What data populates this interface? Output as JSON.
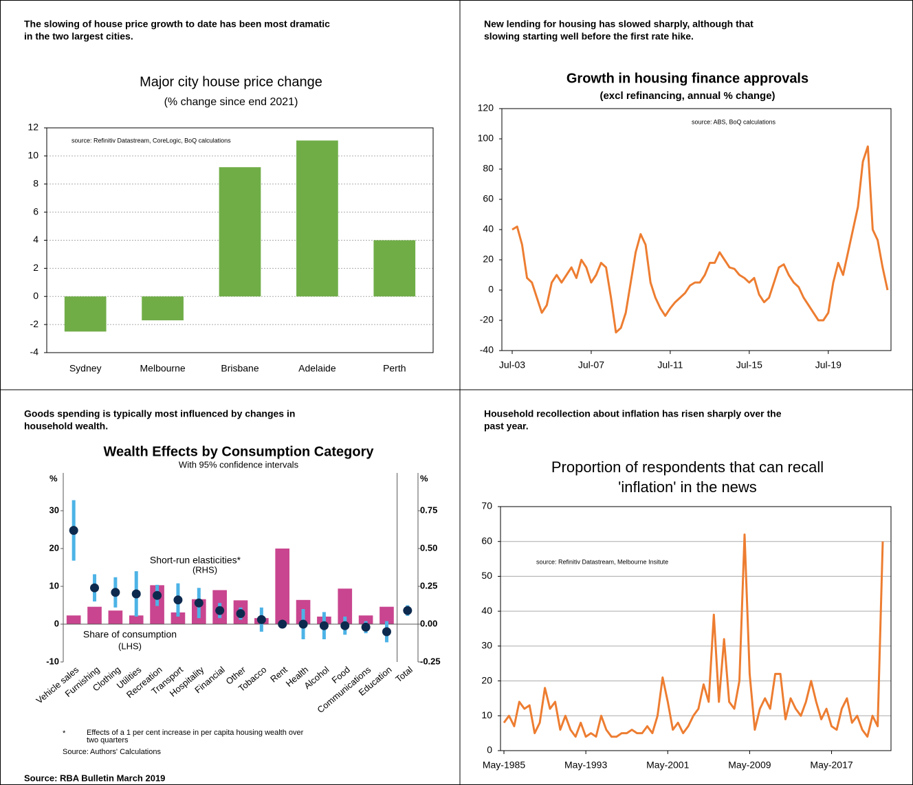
{
  "chart_data": [
    {
      "type": "bar",
      "caption": [
        "The slowing of house price growth to date has been most dramatic",
        "in the two largest cities."
      ],
      "title": "Major city house price change",
      "subtitle": "(% change since end 2021)",
      "source": "source:  Refinitiv Datastream, CoreLogic, BoQ calculations",
      "categories": [
        "Sydney",
        "Melbourne",
        "Brisbane",
        "Adelaide",
        "Perth"
      ],
      "values": [
        -2.5,
        -1.7,
        9.2,
        11.1,
        4.0
      ],
      "color": "#70ad47",
      "ylim": [
        -4,
        12
      ],
      "yticks": [
        -4,
        -2,
        0,
        2,
        4,
        6,
        8,
        10,
        12
      ],
      "grid": true
    },
    {
      "type": "line",
      "caption": [
        "New lending for housing has slowed sharply, although that",
        "slowing starting well before the first rate hike."
      ],
      "title": "Growth in housing finance approvals",
      "subtitle": "(excl refinancing, annual % change)",
      "source": "source:  ABS, BoQ calculations",
      "x": [
        "Jul-03",
        "Oct-03",
        "Jan-04",
        "Apr-04",
        "Jul-04",
        "Oct-04",
        "Jan-05",
        "Apr-05",
        "Jul-05",
        "Oct-05",
        "Jan-06",
        "Apr-06",
        "Jul-06",
        "Oct-06",
        "Jan-07",
        "Apr-07",
        "Jul-07",
        "Oct-07",
        "Jan-08",
        "Apr-08",
        "Jul-08",
        "Oct-08",
        "Jan-09",
        "Apr-09",
        "Jul-09",
        "Oct-09",
        "Jan-10",
        "Apr-10",
        "Jul-10",
        "Oct-10",
        "Jan-11",
        "Apr-11",
        "Jul-11",
        "Oct-11",
        "Jan-12",
        "Apr-12",
        "Jul-12",
        "Oct-12",
        "Jan-13",
        "Apr-13",
        "Jul-13",
        "Oct-13",
        "Jan-14",
        "Apr-14",
        "Jul-14",
        "Oct-14",
        "Jan-15",
        "Apr-15",
        "Jul-15",
        "Oct-15",
        "Jan-16",
        "Apr-16",
        "Jul-16",
        "Oct-16",
        "Jan-17",
        "Apr-17",
        "Jul-17",
        "Oct-17",
        "Jan-18",
        "Apr-18",
        "Jul-18",
        "Oct-18",
        "Jan-19",
        "Apr-19",
        "Jul-19",
        "Oct-19",
        "Jan-20",
        "Apr-20",
        "Jul-20",
        "Oct-20",
        "Jan-21",
        "Apr-21",
        "Jul-21",
        "Oct-21",
        "Jan-22",
        "Apr-22",
        "Jul-22"
      ],
      "series": [
        {
          "name": "Housing finance approvals",
          "color": "#ed7d31",
          "values": [
            40,
            42,
            30,
            8,
            5,
            -5,
            -15,
            -10,
            5,
            10,
            5,
            10,
            15,
            8,
            20,
            15,
            5,
            10,
            18,
            15,
            -5,
            -28,
            -25,
            -15,
            5,
            25,
            37,
            30,
            5,
            -5,
            -12,
            -17,
            -12,
            -8,
            -5,
            -2,
            3,
            5,
            5,
            10,
            18,
            18,
            25,
            20,
            15,
            14,
            10,
            8,
            5,
            8,
            -3,
            -8,
            -5,
            5,
            15,
            17,
            10,
            5,
            2,
            -5,
            -10,
            -15,
            -20,
            -20,
            -15,
            5,
            18,
            10,
            25,
            40,
            55,
            85,
            95,
            40,
            33,
            15,
            0
          ]
        }
      ],
      "xticks": [
        "Jul-03",
        "Jul-07",
        "Jul-11",
        "Jul-15",
        "Jul-19"
      ],
      "ylim": [
        -40,
        120
      ],
      "yticks": [
        -40,
        -20,
        0,
        20,
        40,
        60,
        80,
        100,
        120
      ],
      "grid": false
    },
    {
      "type": "combo",
      "caption": [
        "Goods spending is typically most influenced by changes in",
        "household wealth."
      ],
      "title": "Wealth Effects by Consumption Category",
      "subtitle": "With 95% confidence intervals",
      "ylabel": "%",
      "y2label": "%",
      "categories": [
        "Vehicle sales",
        "Furnishing",
        "Clothing",
        "Utilities",
        "Recreation",
        "Transport",
        "Hospitality",
        "Financial",
        "Other",
        "Tobacco",
        "Rent",
        "Health",
        "Alcohol",
        "Food",
        "Communications",
        "Education",
        "Total"
      ],
      "series": [
        {
          "name": "Share of consumption",
          "color": "#c9458f",
          "values": [
            2.3,
            4.6,
            3.6,
            2.3,
            10.3,
            3.1,
            6.6,
            9.0,
            6.3,
            1.6,
            20,
            6.4,
            2.0,
            9.4,
            2.3,
            4.6,
            null
          ]
        },
        {
          "name": "Short-run elasticities*",
          "color": "#0d2a4e",
          "error_color": "#4db3e6",
          "axis": "y2",
          "values": [
            0.62,
            0.24,
            0.21,
            0.2,
            0.19,
            0.16,
            0.14,
            0.09,
            0.07,
            0.03,
            0.0,
            0.0,
            -0.01,
            -0.01,
            -0.02,
            -0.05,
            0.09
          ],
          "errors": [
            0.2,
            0.09,
            0.1,
            0.15,
            0.07,
            0.11,
            0.1,
            0.05,
            0.04,
            0.08,
            0.01,
            0.1,
            0.09,
            0.06,
            0.04,
            0.07,
            0.035
          ]
        }
      ],
      "annotations": [
        "(RHS)",
        "(LHS)"
      ],
      "ylim": [
        -10,
        40
      ],
      "yticks": [
        -10,
        0,
        10,
        20,
        30
      ],
      "y2lim": [
        -0.25,
        1.0
      ],
      "y2ticks": [
        -0.25,
        {
          "value": 0,
          "label": "0.00"
        },
        0.25,
        {
          "value": 0.5,
          "label": "0.50"
        },
        0.75
      ],
      "footnote": {
        "marker": "*",
        "text": [
          "Effects of a 1 per cent increase in per capita housing wealth over",
          "two quarters"
        ],
        "source_label": "Source:",
        "source": "Authors' Calculations"
      },
      "footer": "Source:  RBA Bulletin March 2019"
    },
    {
      "type": "line",
      "caption": [
        "Household recollection about inflation has risen sharply over the",
        "past year."
      ],
      "title": [
        "Proportion of respondents that can recall",
        "'inflation' in the news"
      ],
      "source": "source:  Refinitiv Datastream, Melbourne Insitute",
      "x": [
        "May-1985",
        "Nov-1985",
        "May-1986",
        "Nov-1986",
        "May-1987",
        "Nov-1987",
        "May-1988",
        "Nov-1988",
        "May-1989",
        "Nov-1989",
        "May-1990",
        "Nov-1990",
        "May-1991",
        "Nov-1991",
        "May-1992",
        "Nov-1992",
        "May-1993",
        "Nov-1993",
        "May-1994",
        "Nov-1994",
        "May-1995",
        "Nov-1995",
        "May-1996",
        "Nov-1996",
        "May-1997",
        "Nov-1997",
        "May-1998",
        "Nov-1998",
        "May-1999",
        "Nov-1999",
        "May-2000",
        "Nov-2000",
        "May-2001",
        "Nov-2001",
        "May-2002",
        "Nov-2002",
        "May-2003",
        "Nov-2003",
        "May-2004",
        "Nov-2004",
        "May-2005",
        "Nov-2005",
        "May-2006",
        "Nov-2006",
        "May-2007",
        "Nov-2007",
        "May-2008",
        "Nov-2008",
        "May-2009",
        "Nov-2009",
        "May-2010",
        "Nov-2010",
        "May-2011",
        "Nov-2011",
        "May-2012",
        "Nov-2012",
        "May-2013",
        "Nov-2013",
        "May-2014",
        "Nov-2014",
        "May-2015",
        "Nov-2015",
        "May-2016",
        "Nov-2016",
        "May-2017",
        "Nov-2017",
        "May-2018",
        "Nov-2018",
        "May-2019",
        "Nov-2019",
        "May-2020",
        "Nov-2020",
        "May-2021",
        "Nov-2021",
        "May-2022"
      ],
      "series": [
        {
          "name": "Respondents recalling inflation",
          "color": "#ed7d31",
          "values": [
            8,
            10,
            7,
            14,
            12,
            13,
            5,
            8,
            18,
            12,
            14,
            6,
            10,
            6,
            4,
            8,
            4,
            5,
            4,
            10,
            6,
            4,
            4,
            5,
            5,
            6,
            5,
            5,
            7,
            5,
            10,
            21,
            14,
            6,
            8,
            5,
            7,
            10,
            12,
            19,
            14,
            39,
            14,
            32,
            14,
            12,
            20,
            62,
            22,
            6,
            12,
            15,
            12,
            22,
            22,
            9,
            15,
            12,
            10,
            14,
            20,
            14,
            9,
            12,
            7,
            6,
            12,
            15,
            8,
            10,
            6,
            4,
            10,
            7,
            60
          ]
        }
      ],
      "xticks": [
        "May-1985",
        "May-1993",
        "May-2001",
        "May-2009",
        "May-2017"
      ],
      "ylim": [
        0,
        70
      ],
      "yticks": [
        0,
        10,
        20,
        30,
        40,
        50,
        60,
        70
      ],
      "grid": true
    }
  ]
}
